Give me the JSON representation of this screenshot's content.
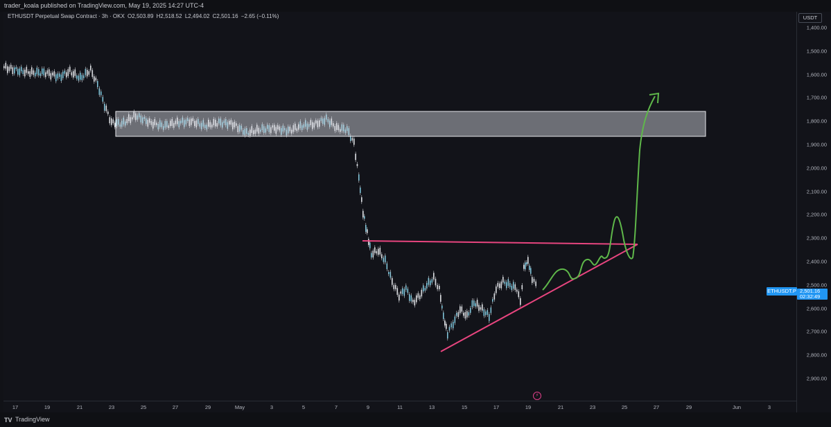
{
  "header": {
    "published_by": "trader_koala published on TradingView.com, May 19, 2025 14:27 UTC-4"
  },
  "legend": {
    "symbol": "ETHUSDT Perpetual Swap Contract · 3h · OKX",
    "open": "O2,503.89",
    "high": "H2,518.52",
    "low": "L2,494.02",
    "close": "C2,501.16",
    "change": "−2.65 (−0.11%)",
    "up_color": "#4bb8d6",
    "change_color": "#c8cad0"
  },
  "price_axis": {
    "currency": "USDT",
    "ticks": [
      "1,400.00",
      "1,500.00",
      "1,600.00",
      "1,700.00",
      "1,800.00",
      "1,900.00",
      "2,000.00",
      "2,100.00",
      "2,200.00",
      "2,300.00",
      "2,400.00",
      "2,500.00",
      "2,600.00",
      "2,700.00",
      "2,800.00",
      "2,900.00"
    ],
    "scale": "inverted"
  },
  "current_price": {
    "symbol_label": "ETHUSDT.P",
    "price": "2,501.16",
    "countdown": "02:32:49"
  },
  "time_axis": {
    "ticks": [
      "17",
      "19",
      "21",
      "23",
      "25",
      "27",
      "29",
      "May",
      "3",
      "5",
      "7",
      "9",
      "11",
      "13",
      "15",
      "17",
      "19",
      "21",
      "23",
      "25",
      "27",
      "29",
      "Jun",
      "3"
    ]
  },
  "drawings": {
    "zone_color": "#ffffff",
    "resistance_color": "#e8457f",
    "projection_color": "#5fb84a"
  },
  "footer": {
    "brand": "TradingView"
  }
}
